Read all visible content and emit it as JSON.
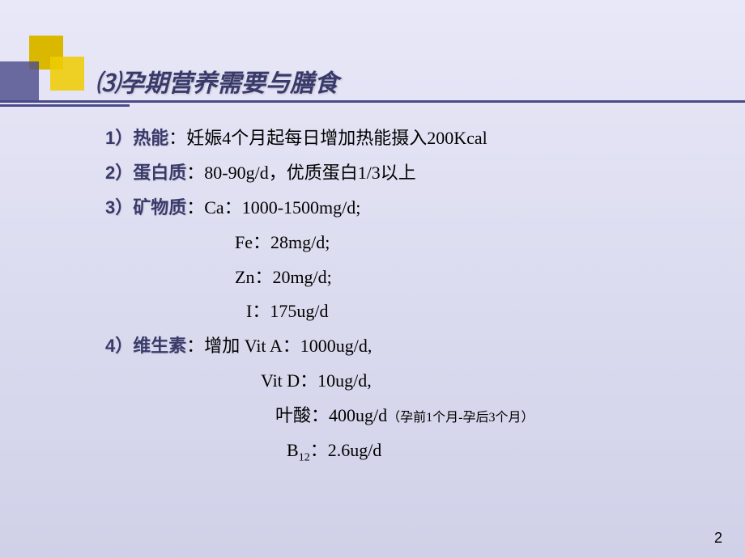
{
  "title": "⑶孕期营养需要与膳食",
  "items": {
    "i1_label": "1）热能",
    "i1_text": "：妊娠4个月起每日增加热能摄入200Kcal",
    "i2_label": "2）蛋白质",
    "i2_text": "：80-90g/d，优质蛋白1/3以上",
    "i3_label": "3）矿物质",
    "i3_text": "：Ca：1000-1500mg/d;",
    "i3_fe": "Fe：28mg/d;",
    "i3_zn": "Zn：20mg/d;",
    "i3_i": "I：175ug/d",
    "i4_label": "4）维生素",
    "i4_text": "：增加 Vit A：1000ug/d,",
    "i4_vd": "Vit D：10ug/d,",
    "i4_fa": "叶酸：400ug/d",
    "i4_fa_note": "（孕前1个月-孕后3个月）",
    "i4_b12a": "B",
    "i4_b12sub": "12",
    "i4_b12b": "：2.6ug/d"
  },
  "page_number": "2",
  "colors": {
    "bg_top": "#e8e8f8",
    "bg_bottom": "#d0d0e8",
    "accent_yellow": "#f0cc00",
    "accent_purple": "#4a4a8a",
    "title_color": "#3a3a6a"
  }
}
